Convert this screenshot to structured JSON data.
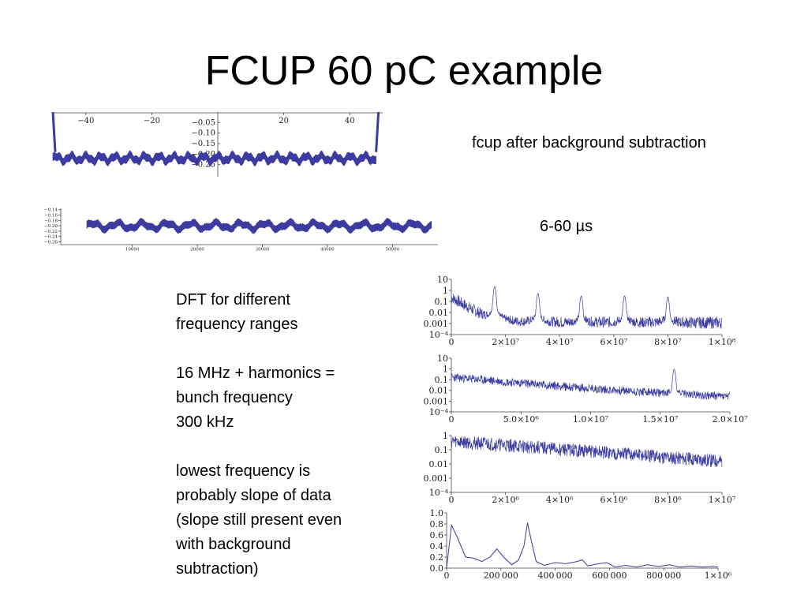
{
  "slide": {
    "title": "FCUP 60 pC example",
    "caption_top": "fcup after background subtraction",
    "caption_range": "6-60 µs",
    "notes": [
      [
        "DFT for different",
        "frequency ranges"
      ],
      [
        "16 MHz + harmonics =",
        "bunch frequency",
        "300 kHz"
      ],
      [
        "lowest frequency is",
        "probably slope of data",
        "(slope still present even",
        "with background",
        "subtraction)"
      ]
    ]
  },
  "colors": {
    "trace": "#3b3ba0",
    "axis": "#444444",
    "text": "#000000"
  },
  "chart_data": [
    {
      "id": "fcup-full",
      "type": "line",
      "description_visible": "fcup signal, full time window",
      "xlim": [
        -50,
        50
      ],
      "ylim": [
        -0.27,
        0.0
      ],
      "x_ticks": [
        -40,
        -20,
        20,
        40
      ],
      "x_tick_labels": [
        "−40",
        "−20",
        "20",
        "40"
      ],
      "y_ticks": [
        -0.05,
        -0.1,
        -0.15,
        -0.2,
        -0.25
      ],
      "y_tick_labels": [
        "−0.05",
        "−0.10",
        "−0.15",
        "−0.20",
        "−0.25"
      ],
      "series": [
        {
          "x_range": [
            -50,
            48
          ],
          "baseline": -0.22,
          "band_width": 0.035,
          "ripple_amplitude": 0.012,
          "ripple_cycles": 22
        }
      ]
    },
    {
      "id": "fcup-6-60us",
      "type": "line",
      "xlim": [
        -1000,
        57000
      ],
      "ylim": [
        -0.27,
        -0.135
      ],
      "x_ticks": [
        10000,
        20000,
        30000,
        40000,
        50000
      ],
      "x_tick_labels": [
        "10000",
        "20000",
        "30000",
        "40000",
        "50000"
      ],
      "y_ticks": [
        -0.14,
        -0.16,
        -0.18,
        -0.2,
        -0.22,
        -0.24,
        -0.26
      ],
      "y_tick_labels": [
        "−0.14",
        "−0.16",
        "−0.18",
        "−0.20",
        "−0.22",
        "−0.24",
        "−0.26"
      ],
      "series": [
        {
          "x_range": [
            3000,
            56000
          ],
          "baseline": -0.2,
          "band_width": 0.025,
          "ripple_amplitude": 0.01,
          "ripple_cycles": 14
        }
      ]
    },
    {
      "id": "dft-0-1e8",
      "type": "line",
      "yscale": "log",
      "xlim": [
        0,
        100000000
      ],
      "ylim": [
        0.0001,
        10
      ],
      "x_ticks": [
        0,
        20000000,
        40000000,
        60000000,
        80000000,
        100000000
      ],
      "x_tick_labels": [
        "0",
        "2×10⁷",
        "4×10⁷",
        "6×10⁷",
        "8×10⁷",
        "1×10⁸"
      ],
      "y_ticks": [
        0.0001,
        0.001,
        0.01,
        0.1,
        1,
        10
      ],
      "y_tick_labels": [
        "10⁻⁴",
        "0.001",
        "0.01",
        "0.1",
        "1",
        "10"
      ],
      "series": [
        {
          "floor": 0.0015,
          "noise_decades": 0.7,
          "start_level": 0.3,
          "start_decay": 0.03,
          "peaks": [
            {
              "x": 16000000,
              "y": 2.0
            },
            {
              "x": 32000000,
              "y": 0.5
            },
            {
              "x": 48000000,
              "y": 0.3
            },
            {
              "x": 64000000,
              "y": 0.3
            },
            {
              "x": 80000000,
              "y": 0.25
            }
          ]
        }
      ]
    },
    {
      "id": "dft-0-2e7",
      "type": "line",
      "yscale": "log",
      "xlim": [
        0,
        20000000
      ],
      "ylim": [
        0.0001,
        10
      ],
      "x_ticks": [
        0,
        5000000,
        10000000,
        15000000,
        20000000
      ],
      "x_tick_labels": [
        "0",
        "5.0×10⁶",
        "1.0×10⁷",
        "1.5×10⁷",
        "2.0×10⁷"
      ],
      "y_ticks": [
        0.0001,
        0.001,
        0.01,
        0.1,
        1,
        10
      ],
      "y_tick_labels": [
        "10⁻⁴",
        "0.001",
        "0.01",
        "0.1",
        "1",
        "10"
      ],
      "series": [
        {
          "floor": 0.002,
          "noise_decades": 0.5,
          "start_level": 0.2,
          "start_decay": 0.2,
          "peaks": [
            {
              "x": 16000000,
              "y": 0.9
            }
          ]
        }
      ]
    },
    {
      "id": "dft-0-1e7",
      "type": "line",
      "yscale": "log",
      "xlim": [
        0,
        10000000
      ],
      "ylim": [
        0.0001,
        1
      ],
      "x_ticks": [
        0,
        2000000,
        4000000,
        6000000,
        8000000,
        10000000
      ],
      "x_tick_labels": [
        "0",
        "2×10⁶",
        "4×10⁶",
        "6×10⁶",
        "8×10⁶",
        "1×10⁷"
      ],
      "y_ticks": [
        0.0001,
        0.001,
        0.01,
        0.1,
        1
      ],
      "y_tick_labels": [
        "10⁻⁴",
        "0.001",
        "0.01",
        "0.1",
        "1"
      ],
      "series": [
        {
          "floor": 0.002,
          "noise_decades": 0.6,
          "start_level": 0.5,
          "start_decay": 0.3,
          "peaks": []
        }
      ]
    },
    {
      "id": "dft-0-1e6",
      "type": "line",
      "xlim": [
        0,
        1000000
      ],
      "ylim": [
        0,
        1.0
      ],
      "x_ticks": [
        0,
        200000,
        400000,
        600000,
        800000,
        1000000
      ],
      "x_tick_labels": [
        "0",
        "200 000",
        "400 000",
        "600 000",
        "800 000",
        "1×10⁶"
      ],
      "y_ticks": [
        0,
        0.2,
        0.4,
        0.6,
        0.8,
        1.0
      ],
      "y_tick_labels": [
        "0.0",
        "0.2",
        "0.4",
        "0.6",
        "0.8",
        "1.0"
      ],
      "series": [
        {
          "x": [
            0,
            18000,
            40000,
            70000,
            100000,
            130000,
            160000,
            185000,
            210000,
            240000,
            265000,
            285000,
            298000,
            312000,
            330000,
            360000,
            400000,
            440000,
            480000,
            500000,
            520000,
            560000,
            590000,
            620000,
            660000,
            700000,
            740000,
            780000,
            820000,
            860000,
            900000,
            940000,
            980000,
            1000000
          ],
          "y": [
            0.0,
            0.78,
            0.55,
            0.2,
            0.18,
            0.12,
            0.2,
            0.35,
            0.2,
            0.06,
            0.15,
            0.4,
            0.82,
            0.5,
            0.12,
            0.05,
            0.1,
            0.08,
            0.12,
            0.15,
            0.04,
            0.08,
            0.1,
            0.02,
            0.05,
            0.02,
            0.06,
            0.03,
            0.06,
            0.02,
            0.04,
            0.02,
            0.03,
            0.02
          ]
        }
      ]
    }
  ]
}
